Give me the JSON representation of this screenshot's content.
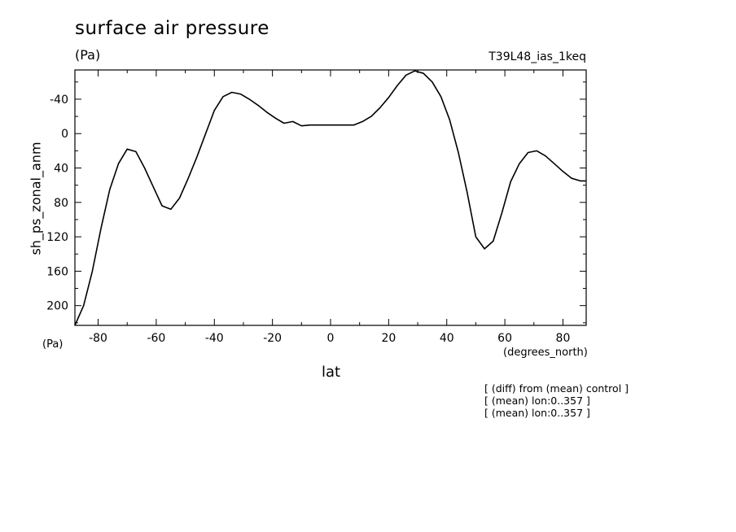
{
  "header": {
    "title": "surface air pressure",
    "units": "(Pa)",
    "run_id": "T39L48_ias_1keq"
  },
  "axes": {
    "y_label": "sh_ps_zonal_anm",
    "y_unit": "(Pa)",
    "x_label": "lat",
    "x_unit": "(degrees_north)"
  },
  "notes": [
    "[ (diff) from (mean) control ]",
    "[ (mean) lon:0..357 ]",
    "[ (mean) lon:0..357 ]"
  ],
  "chart_data": {
    "type": "line",
    "title": "surface air pressure",
    "xlabel": "lat",
    "ylabel": "sh_ps_zonal_anm",
    "xlim": [
      -88,
      88
    ],
    "ylim": [
      223,
      -74
    ],
    "y_inverted": true,
    "x_ticks": [
      -80,
      -60,
      -40,
      -20,
      0,
      20,
      40,
      60,
      80
    ],
    "y_ticks": [
      -40,
      0,
      40,
      80,
      120,
      160,
      200
    ],
    "x_tick_labels": [
      "-80",
      "-60",
      "-40",
      "-20",
      "0",
      "20",
      "40",
      "60",
      "80"
    ],
    "y_tick_labels": [
      "-40",
      "0",
      "40",
      "80",
      "120",
      "160",
      "200"
    ],
    "grid": false,
    "series": [
      {
        "x": [
          -88,
          -85,
          -82,
          -79,
          -76,
          -73,
          -70,
          -67,
          -64,
          -61,
          -58,
          -55,
          -52,
          -49,
          -46,
          -43,
          -40,
          -37,
          -34,
          -31,
          -28,
          -25,
          -22,
          -19,
          -16,
          -13,
          -10,
          -7,
          -4,
          -1,
          2,
          5,
          8,
          11,
          14,
          17,
          20,
          23,
          26,
          29,
          32,
          35,
          38,
          41,
          44,
          47,
          50,
          53,
          56,
          59,
          62,
          65,
          68,
          71,
          74,
          77,
          80,
          83,
          86,
          88
        ],
        "y": [
          223,
          200,
          160,
          110,
          65,
          35,
          18,
          21,
          40,
          62,
          84,
          88,
          75,
          52,
          27,
          0,
          -27,
          -43,
          -48,
          -46,
          -40,
          -33,
          -25,
          -18,
          -12,
          -14,
          -9,
          -10,
          -10,
          -10,
          -10,
          -10,
          -10,
          -14,
          -20,
          -30,
          -42,
          -56,
          -68,
          -73,
          -70,
          -60,
          -43,
          -16,
          22,
          68,
          120,
          134,
          125,
          92,
          56,
          35,
          22,
          20,
          26,
          35,
          44,
          52,
          55,
          55
        ]
      }
    ]
  }
}
